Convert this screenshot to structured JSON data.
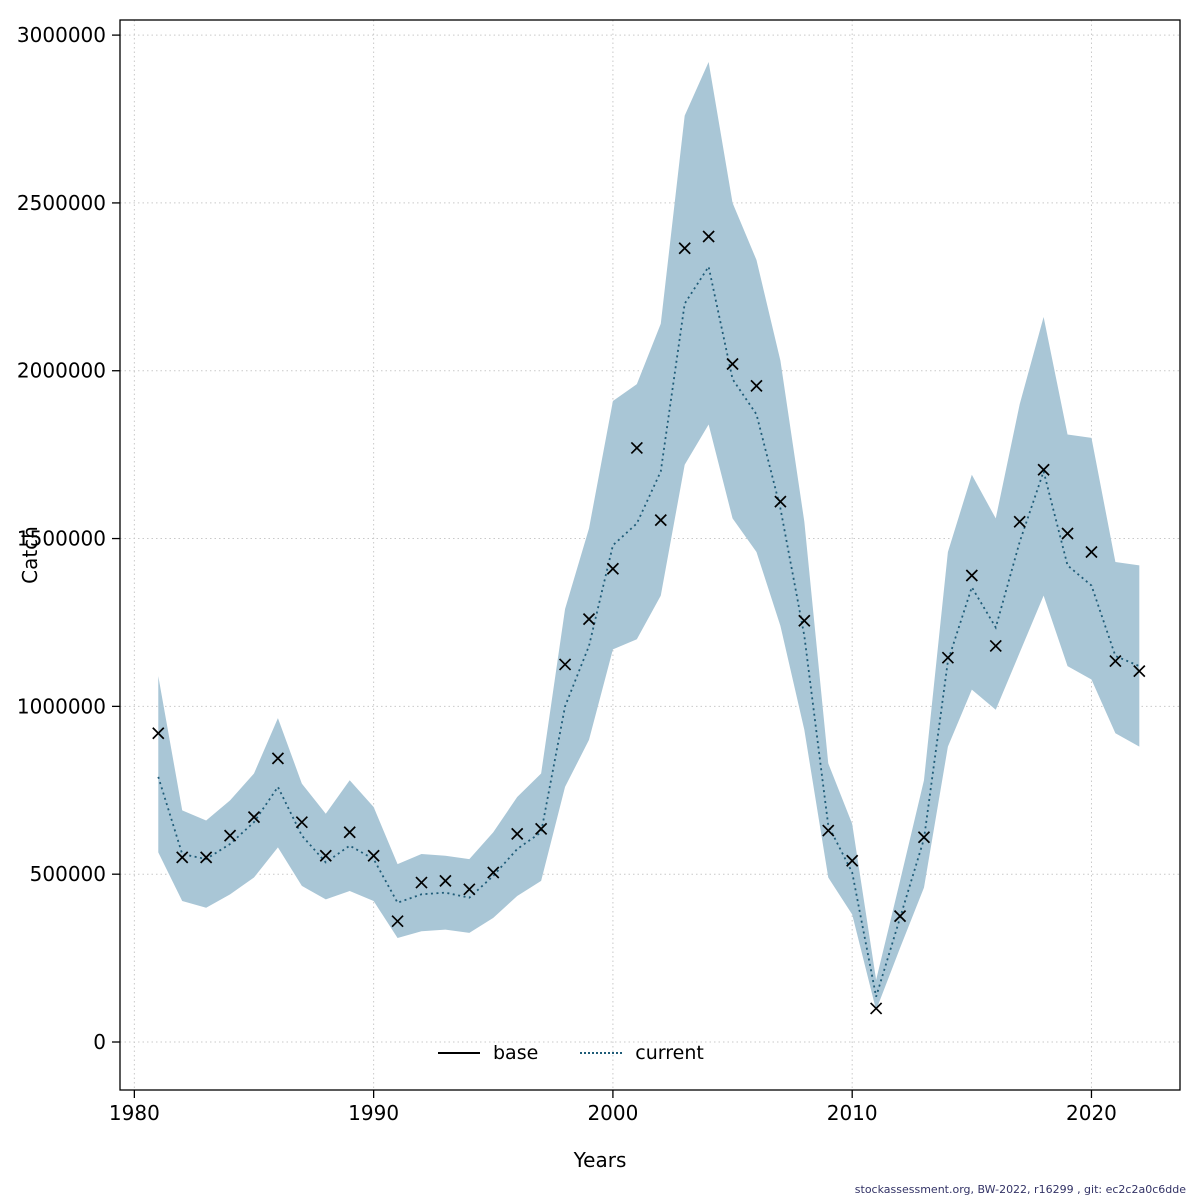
{
  "footer": {
    "text": "stockassessment.org, BW-2022, r16299 , git: ec2c2a0c6dde"
  },
  "chart_data": {
    "type": "line",
    "title": "",
    "xlabel": "Years",
    "ylabel": "Catch",
    "grid": true,
    "xlim": [
      1979.4,
      2023.7
    ],
    "ylim": [
      -143000,
      3045000
    ],
    "x_ticks": [
      1980,
      1990,
      2000,
      2010,
      2020
    ],
    "y_ticks": [
      0,
      500000,
      1000000,
      1500000,
      2000000,
      2500000,
      3000000
    ],
    "band_color": "#a9c6d6",
    "current_color": "#1f5c78",
    "legend": {
      "position": "bottom-center",
      "entries": [
        {
          "label": "base",
          "style": "solid",
          "color": "#000000"
        },
        {
          "label": "current",
          "style": "dotted",
          "color": "#1f5c78"
        }
      ]
    },
    "years": [
      1981,
      1982,
      1983,
      1984,
      1985,
      1986,
      1987,
      1988,
      1989,
      1990,
      1991,
      1992,
      1993,
      1994,
      1995,
      1996,
      1997,
      1998,
      1999,
      2000,
      2001,
      2002,
      2003,
      2004,
      2005,
      2006,
      2007,
      2008,
      2009,
      2010,
      2011,
      2012,
      2013,
      2014,
      2015,
      2016,
      2017,
      2018,
      2019,
      2020,
      2021,
      2022
    ],
    "series": [
      {
        "name": "base",
        "marker": "x",
        "values": [
          920000,
          550000,
          550000,
          615000,
          670000,
          845000,
          655000,
          555000,
          625000,
          555000,
          360000,
          475000,
          480000,
          455000,
          505000,
          620000,
          635000,
          1125000,
          1260000,
          1410000,
          1770000,
          1555000,
          2365000,
          2400000,
          2020000,
          1955000,
          1610000,
          1255000,
          630000,
          540000,
          100000,
          375000,
          610000,
          1145000,
          1390000,
          1180000,
          1550000,
          1705000,
          1515000,
          1460000,
          1135000,
          1105000
        ]
      },
      {
        "name": "current",
        "style": "dotted",
        "values": [
          790000,
          560000,
          545000,
          590000,
          655000,
          760000,
          615000,
          535000,
          585000,
          545000,
          415000,
          440000,
          445000,
          430000,
          495000,
          575000,
          625000,
          1000000,
          1180000,
          1480000,
          1545000,
          1700000,
          2200000,
          2310000,
          1975000,
          1870000,
          1590000,
          1210000,
          645000,
          505000,
          135000,
          370000,
          605000,
          1135000,
          1355000,
          1235000,
          1490000,
          1700000,
          1420000,
          1360000,
          1150000,
          1120000
        ]
      }
    ],
    "band": {
      "lower": [
        565000,
        420000,
        400000,
        440000,
        490000,
        580000,
        465000,
        425000,
        450000,
        420000,
        310000,
        330000,
        335000,
        325000,
        370000,
        435000,
        480000,
        760000,
        900000,
        1170000,
        1200000,
        1330000,
        1720000,
        1840000,
        1560000,
        1460000,
        1240000,
        930000,
        490000,
        380000,
        95000,
        280000,
        460000,
        880000,
        1050000,
        990000,
        1160000,
        1330000,
        1120000,
        1080000,
        920000,
        880000
      ],
      "upper": [
        1090000,
        690000,
        660000,
        720000,
        800000,
        965000,
        770000,
        680000,
        780000,
        700000,
        530000,
        560000,
        555000,
        545000,
        625000,
        730000,
        800000,
        1290000,
        1530000,
        1910000,
        1960000,
        2140000,
        2760000,
        2920000,
        2500000,
        2330000,
        2030000,
        1550000,
        830000,
        650000,
        185000,
        480000,
        780000,
        1460000,
        1690000,
        1560000,
        1900000,
        2160000,
        1810000,
        1800000,
        1430000,
        1420000
      ]
    }
  }
}
